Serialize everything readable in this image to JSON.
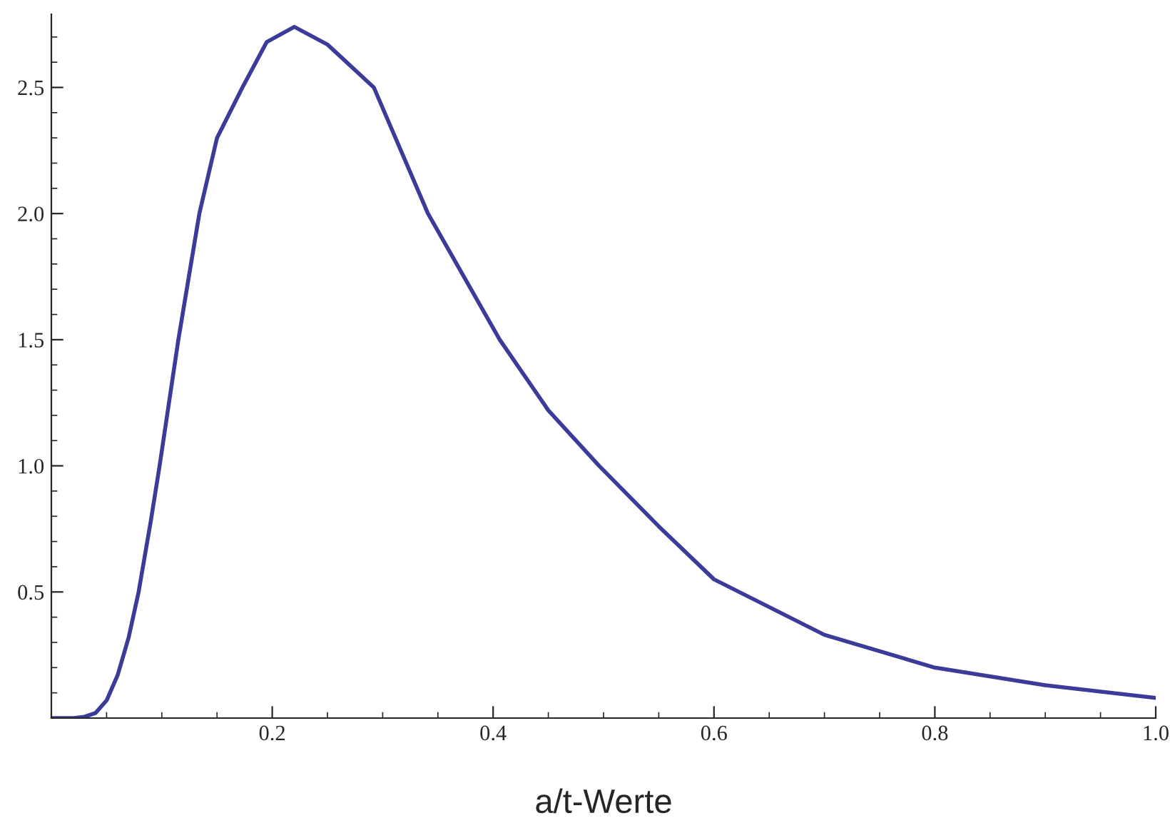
{
  "chart_data": {
    "type": "line",
    "xlabel": "a/t-Werte",
    "x": [
      0,
      0.02,
      0.03,
      0.04,
      0.05,
      0.06,
      0.07,
      0.079,
      0.09,
      0.098,
      0.115,
      0.134,
      0.15,
      0.173,
      0.195,
      0.22,
      0.25,
      0.292,
      0.341,
      0.406,
      0.45,
      0.496,
      0.55,
      0.6,
      0.7,
      0.8,
      0.9,
      1.0
    ],
    "series": [
      {
        "color": "#3b3b9a",
        "values": [
          0,
          0,
          0.005,
          0.02,
          0.07,
          0.17,
          0.32,
          0.5,
          0.78,
          1.0,
          1.5,
          2.0,
          2.3,
          2.5,
          2.68,
          2.74,
          2.67,
          2.5,
          2.0,
          1.5,
          1.22,
          1.0,
          0.76,
          0.55,
          0.33,
          0.2,
          0.13,
          0.08
        ]
      }
    ],
    "xlim": [
      0,
      1.0
    ],
    "ylim": [
      0,
      2.79
    ],
    "xticks": [
      0.2,
      0.4,
      0.6,
      0.8,
      {
        "value": 1,
        "label": "1.0"
      }
    ],
    "yticks": [
      0.5,
      {
        "value": 1,
        "label": "1.0"
      },
      1.5,
      {
        "value": 2,
        "label": "2.0"
      },
      2.5
    ],
    "grid": false,
    "legend": false,
    "marker": "none",
    "line_style": "solid"
  }
}
